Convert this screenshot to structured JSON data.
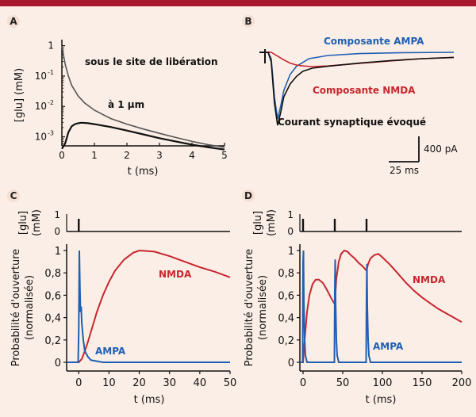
{
  "colors": {
    "background": "#fbeee6",
    "topbar": "#a8192e",
    "ampa": "#1f5fb4",
    "nmda": "#c8262e",
    "black": "#111111",
    "grey": "#555555"
  },
  "chart_data": [
    {
      "panel": "A",
      "type": "line",
      "xlabel": "t (ms)",
      "ylabel": "[glu] (mM)",
      "xlim": [
        0,
        5
      ],
      "ylim_log10": [
        -3.3,
        0.2
      ],
      "x_ticks": [
        "0",
        "1",
        "2",
        "3",
        "4",
        "5"
      ],
      "y_ticks": [
        "1",
        "10",
        "10",
        "10"
      ],
      "y_tick_exponents": [
        "",
        "-1",
        "-2",
        "-3"
      ],
      "series": [
        {
          "name": "sous le site de libération",
          "x": [
            0,
            0.05,
            0.1,
            0.2,
            0.3,
            0.5,
            0.7,
            1.0,
            1.5,
            2.0,
            2.5,
            3.0,
            3.5,
            4.0,
            4.5,
            5.0
          ],
          "y": [
            1.0,
            0.5,
            0.25,
            0.1,
            0.05,
            0.022,
            0.013,
            0.0075,
            0.004,
            0.0026,
            0.0018,
            0.0013,
            0.00095,
            0.0007,
            0.00055,
            0.00045
          ]
        },
        {
          "name": "à 1 µm",
          "x": [
            0,
            0.1,
            0.2,
            0.3,
            0.4,
            0.5,
            0.6,
            0.8,
            1.0,
            1.5,
            2.0,
            2.5,
            3.0,
            3.5,
            4.0,
            4.5,
            5.0
          ],
          "y": [
            0.0004,
            0.0006,
            0.0014,
            0.0022,
            0.0026,
            0.0028,
            0.0029,
            0.0028,
            0.0026,
            0.0021,
            0.0016,
            0.0012,
            0.0009,
            0.0007,
            0.00055,
            0.00045,
            0.00038
          ]
        }
      ],
      "annotations": [
        "sous le site de libération",
        "à 1 µm"
      ]
    },
    {
      "panel": "B",
      "type": "line",
      "series": [
        {
          "name": "Composante AMPA",
          "color": "#1f5fb4",
          "x": [
            0,
            1,
            2,
            3,
            4,
            5,
            6,
            8,
            10,
            14,
            20,
            30,
            45,
            60
          ],
          "y": [
            0,
            0,
            -100,
            -700,
            -1050,
            -850,
            -600,
            -350,
            -220,
            -100,
            -50,
            -20,
            -5,
            0
          ]
        },
        {
          "name": "Composante NMDA",
          "color": "#c8262e",
          "x": [
            0,
            2,
            4,
            6,
            8,
            10,
            12,
            15,
            20,
            25,
            30,
            40,
            50,
            60
          ],
          "y": [
            0,
            0,
            -60,
            -120,
            -170,
            -200,
            -215,
            -225,
            -215,
            -195,
            -175,
            -135,
            -100,
            -80
          ]
        },
        {
          "name": "Courant synaptique évoqué",
          "color": "#111111",
          "x": [
            0,
            1,
            2,
            3,
            4,
            5,
            6,
            8,
            10,
            12,
            15,
            20,
            30,
            40,
            50,
            60
          ],
          "y": [
            0,
            0,
            -150,
            -800,
            -1150,
            -950,
            -700,
            -500,
            -380,
            -300,
            -250,
            -220,
            -170,
            -130,
            -100,
            -80
          ]
        }
      ],
      "labels": [
        "Composante AMPA",
        "Composante NMDA",
        "Courant synaptique évoqué"
      ],
      "scale_bar": {
        "current": "400 pA",
        "time": "25 ms"
      }
    },
    {
      "panel": "C",
      "type": "line",
      "xlabel": "t (ms)",
      "ylabel": "Probabilité d'ouverture",
      "ylabel2": "(normalisée)",
      "xlim": [
        -4,
        50
      ],
      "ylim": [
        -0.05,
        1.05
      ],
      "x_ticks": [
        "0",
        "10",
        "20",
        "30",
        "40",
        "50"
      ],
      "y_ticks": [
        "0",
        "0,2",
        "0,4",
        "0,6",
        "0,8",
        "1"
      ],
      "glu_panel": {
        "ylabel": "[glu]",
        "ylabel2": "(mM)",
        "y_ticks": [
          "0",
          "1"
        ],
        "pulses_ms": [
          0
        ]
      },
      "series": [
        {
          "name": "NMDA",
          "color": "#c8262e",
          "x": [
            -4,
            0,
            1,
            2,
            3,
            4,
            6,
            8,
            10,
            12,
            15,
            18,
            20,
            25,
            30,
            35,
            40,
            45,
            50
          ],
          "y": [
            0,
            0,
            0.03,
            0.1,
            0.18,
            0.27,
            0.45,
            0.6,
            0.72,
            0.82,
            0.92,
            0.98,
            1.0,
            0.99,
            0.95,
            0.9,
            0.85,
            0.81,
            0.76
          ]
        },
        {
          "name": "AMPA",
          "color": "#1f5fb4",
          "x": [
            -4,
            -0.2,
            0,
            0.2,
            0.4,
            0.6,
            0.8,
            1.0,
            1.5,
            2.0,
            3.0,
            4.0,
            6.0,
            8.0,
            50
          ],
          "y": [
            0,
            0,
            0.3,
            1.0,
            0.65,
            0.45,
            0.5,
            0.35,
            0.2,
            0.1,
            0.05,
            0.02,
            0.01,
            0,
            0
          ]
        }
      ]
    },
    {
      "panel": "D",
      "type": "line",
      "xlabel": "t (ms)",
      "ylabel": "Probabilité d'ouverture",
      "ylabel2": "(normalisée)",
      "xlim": [
        -4,
        200
      ],
      "ylim": [
        -0.05,
        1.05
      ],
      "x_ticks": [
        "0",
        "50",
        "100",
        "150",
        "200"
      ],
      "y_ticks": [
        "0",
        "0,2",
        "0,4",
        "0,6",
        "0,8",
        "1"
      ],
      "glu_panel": {
        "ylabel": "[glu]",
        "ylabel2": "(mM)",
        "y_ticks": [
          "0",
          "1"
        ],
        "pulses_ms": [
          0,
          40,
          80
        ]
      },
      "series": [
        {
          "name": "NMDA",
          "color": "#c8262e",
          "x": [
            -4,
            0,
            2,
            5,
            8,
            12,
            16,
            20,
            25,
            30,
            35,
            40,
            42,
            45,
            48,
            52,
            56,
            60,
            65,
            70,
            75,
            80,
            82,
            85,
            90,
            95,
            100,
            110,
            120,
            130,
            140,
            150,
            160,
            170,
            180,
            190,
            200
          ],
          "y": [
            0,
            0,
            0.2,
            0.45,
            0.6,
            0.7,
            0.74,
            0.74,
            0.71,
            0.65,
            0.58,
            0.52,
            0.75,
            0.9,
            0.97,
            1.0,
            0.99,
            0.96,
            0.93,
            0.89,
            0.86,
            0.82,
            0.88,
            0.93,
            0.96,
            0.97,
            0.94,
            0.87,
            0.79,
            0.71,
            0.64,
            0.58,
            0.53,
            0.48,
            0.44,
            0.4,
            0.36
          ]
        },
        {
          "name": "AMPA",
          "color": "#1f5fb4",
          "x": [
            -4,
            -0.5,
            0,
            0.5,
            1,
            2,
            3,
            5,
            39.5,
            40,
            40.5,
            41,
            42,
            43,
            45,
            79.5,
            80,
            80.5,
            81,
            82,
            83,
            85,
            200
          ],
          "y": [
            0,
            0,
            0.9,
            1.0,
            0.55,
            0.2,
            0.06,
            0,
            0,
            0.65,
            0.92,
            0.55,
            0.2,
            0.06,
            0,
            0,
            0.6,
            0.88,
            0.5,
            0.2,
            0.06,
            0,
            0
          ]
        }
      ]
    }
  ]
}
